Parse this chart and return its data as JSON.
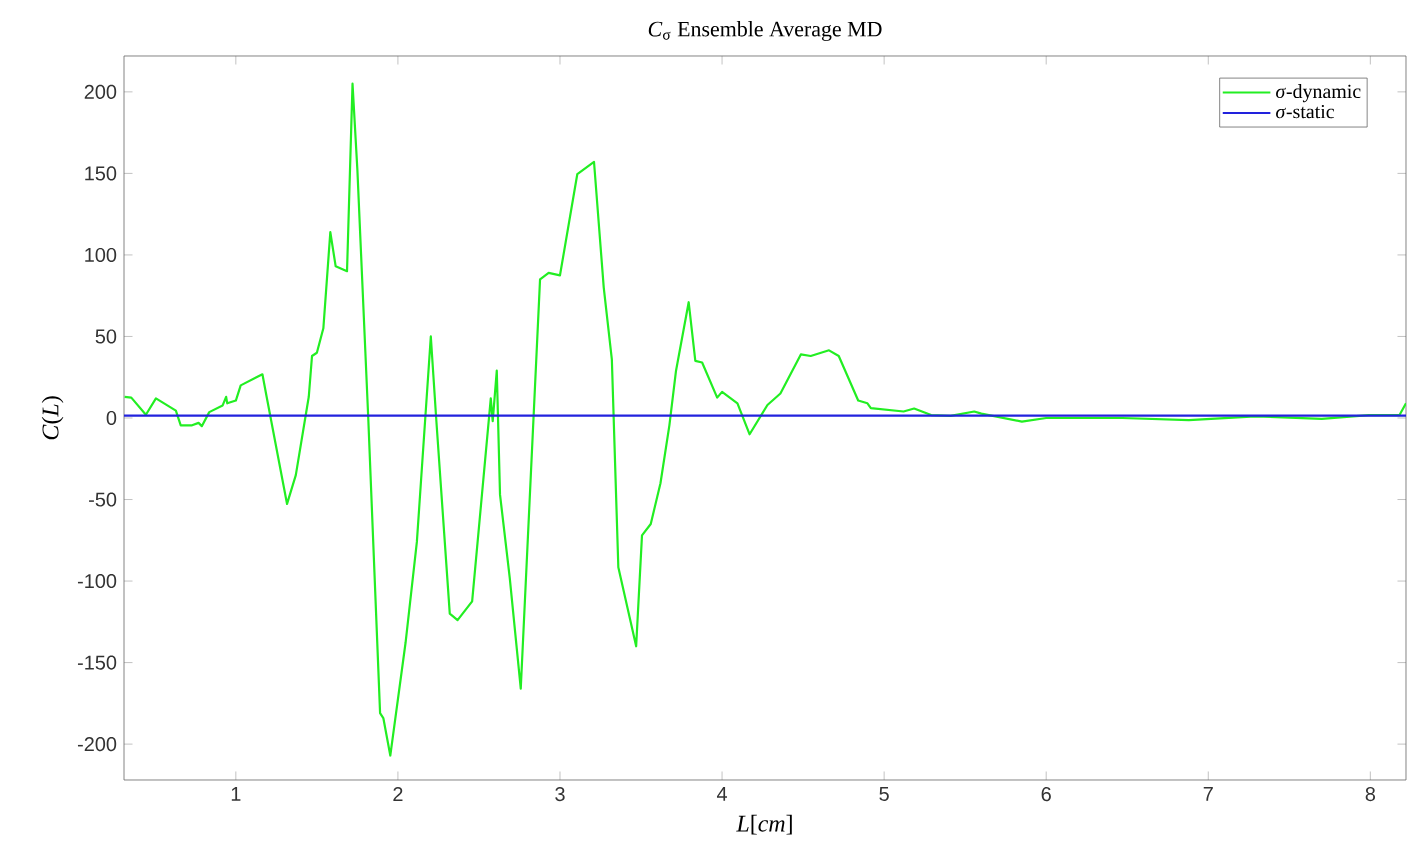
{
  "chart_data": {
    "type": "line",
    "title": "*C*$_{σ}$ Ensemble Average MD",
    "xlabel": "*L*[*cm*]",
    "ylabel": "*C*(*L*)",
    "xlim": [
      0.31,
      8.22
    ],
    "ylim": [
      -222,
      222
    ],
    "xticks": [
      1,
      2,
      3,
      4,
      5,
      6,
      7,
      8
    ],
    "yticks": [
      -200,
      -150,
      -100,
      -50,
      0,
      50,
      100,
      150,
      200
    ],
    "legend": "top right",
    "grid": false,
    "series": [
      {
        "name": "*σ*-dynamic",
        "color": "#22ee22",
        "x": [
          0.314,
          0.355,
          0.445,
          0.507,
          0.63,
          0.66,
          0.73,
          0.77,
          0.79,
          0.836,
          0.918,
          0.94,
          0.947,
          1.0,
          1.03,
          1.164,
          1.19,
          1.316,
          1.37,
          1.45,
          1.47,
          1.5,
          1.54,
          1.583,
          1.616,
          1.686,
          1.72,
          1.75,
          1.817,
          1.89,
          1.91,
          1.953,
          2.047,
          2.117,
          2.203,
          2.236,
          2.32,
          2.368,
          2.458,
          2.573,
          2.585,
          2.61,
          2.63,
          2.69,
          2.758,
          2.877,
          2.93,
          3.0,
          3.107,
          3.21,
          3.27,
          3.32,
          3.36,
          3.47,
          3.506,
          3.56,
          3.62,
          3.675,
          3.716,
          3.794,
          3.835,
          3.877,
          3.97,
          4.0,
          4.095,
          4.17,
          4.28,
          4.36,
          4.486,
          4.547,
          4.66,
          4.72,
          4.84,
          4.897,
          4.918,
          5.12,
          5.185,
          5.29,
          5.41,
          5.556,
          5.6,
          5.85,
          6.0,
          6.47,
          6.88,
          7.29,
          7.7,
          7.99,
          8.18,
          8.22
        ],
        "values": [
          13,
          12.5,
          2,
          12,
          4.5,
          -4.5,
          -4.5,
          -3,
          -5,
          3.6,
          7.6,
          13,
          9,
          10.7,
          20,
          26.8,
          13,
          -52.7,
          -35,
          13,
          38,
          40,
          55,
          114,
          93,
          90,
          205,
          152,
          0,
          -181,
          -184,
          -207,
          -138,
          -76,
          50,
          0,
          -120,
          -124,
          -112.5,
          12,
          -2,
          29,
          -47,
          -98,
          -166,
          85,
          89,
          87.5,
          149.6,
          157,
          80,
          36,
          -91.5,
          -140,
          -72,
          -65,
          -40,
          -4.5,
          29,
          71,
          35,
          34,
          12.5,
          16,
          9,
          -10,
          8,
          15,
          39,
          38,
          41.5,
          38,
          10.7,
          9,
          6,
          4,
          5.8,
          1.8,
          1.3,
          4,
          2.7,
          -2.2,
          0,
          0,
          -1.3,
          1,
          -0.5,
          1.8,
          1.8,
          9
        ]
      },
      {
        "name": "*σ*-static",
        "color": "#2222dd",
        "x": [
          0.31,
          8.22
        ],
        "values": [
          1.5,
          1.5
        ]
      }
    ]
  }
}
